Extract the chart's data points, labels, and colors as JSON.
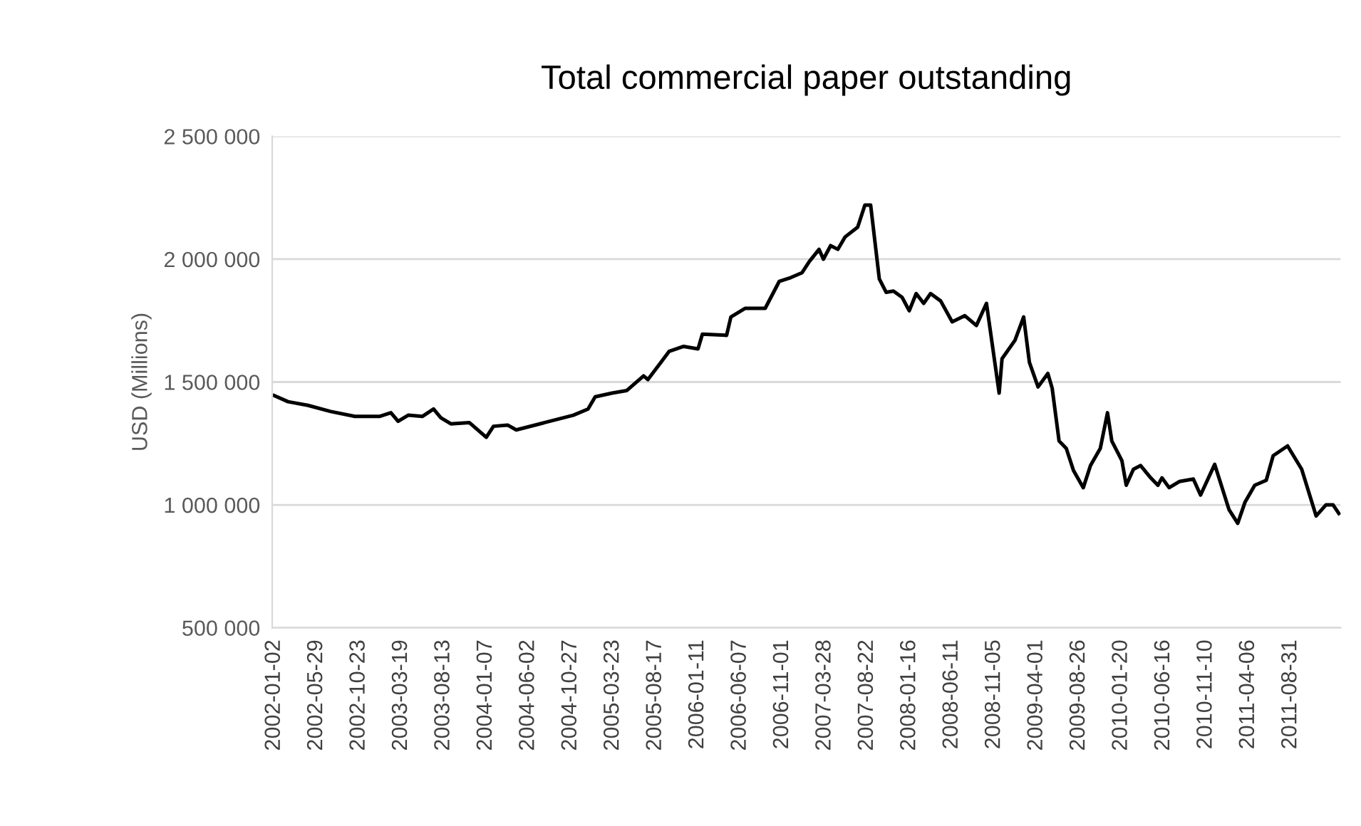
{
  "chart_data": {
    "type": "line",
    "title": "Total commercial paper outstanding",
    "ylabel": "USD (Millions)",
    "x": [
      "2002-01-02",
      "2002-02-19",
      "2002-04-29",
      "2002-07-17",
      "2002-10-09",
      "2003-01-02",
      "2003-02-11",
      "2003-03-08",
      "2003-04-12",
      "2003-05-31",
      "2003-07-09",
      "2003-08-03",
      "2003-09-07",
      "2003-11-10",
      "2004-01-08",
      "2004-02-02",
      "2004-03-22",
      "2004-04-21",
      "2004-07-29",
      "2004-11-05",
      "2004-12-26",
      "2005-01-20",
      "2005-03-20",
      "2005-05-09",
      "2005-07-07",
      "2005-07-22",
      "2005-10-04",
      "2005-11-23",
      "2006-01-12",
      "2006-01-27",
      "2006-04-21",
      "2006-05-06",
      "2006-06-25",
      "2006-09-02",
      "2006-10-21",
      "2006-11-30",
      "2007-01-08",
      "2007-02-02",
      "2007-03-08",
      "2007-03-23",
      "2007-04-17",
      "2007-05-12",
      "2007-06-06",
      "2007-07-20",
      "2007-08-14",
      "2007-09-03",
      "2007-10-03",
      "2007-10-27",
      "2007-11-21",
      "2007-12-21",
      "2008-01-15",
      "2008-02-08",
      "2008-03-05",
      "2008-03-29",
      "2008-05-03",
      "2008-06-12",
      "2008-07-26",
      "2008-09-04",
      "2008-10-09",
      "2008-11-22",
      "2008-12-02",
      "2009-01-16",
      "2009-02-15",
      "2009-03-07",
      "2009-04-06",
      "2009-05-10",
      "2009-05-25",
      "2009-06-18",
      "2009-07-13",
      "2009-08-07",
      "2009-09-10",
      "2009-10-05",
      "2009-11-08",
      "2009-12-03",
      "2009-12-18",
      "2010-01-22",
      "2010-02-06",
      "2010-03-03",
      "2010-03-28",
      "2010-05-02",
      "2010-05-27",
      "2010-06-10",
      "2010-07-05",
      "2010-08-09",
      "2010-09-27",
      "2010-10-22",
      "2010-12-10",
      "2011-01-29",
      "2011-02-28",
      "2011-03-25",
      "2011-04-28",
      "2011-06-07",
      "2011-07-01",
      "2011-08-20",
      "2011-10-08",
      "2011-11-27",
      "2011-12-31",
      "2012-01-25",
      "2012-02-14"
    ],
    "series": [
      {
        "color": "#000000",
        "values": [
          1445000,
          1420000,
          1405000,
          1380000,
          1360000,
          1360000,
          1375000,
          1340000,
          1365000,
          1360000,
          1390000,
          1355000,
          1330000,
          1335000,
          1275000,
          1320000,
          1325000,
          1305000,
          1335000,
          1365000,
          1390000,
          1440000,
          1455000,
          1465000,
          1525000,
          1510000,
          1625000,
          1645000,
          1635000,
          1695000,
          1690000,
          1765000,
          1800000,
          1800000,
          1910000,
          1925000,
          1945000,
          1990000,
          2040000,
          2000000,
          2055000,
          2040000,
          2090000,
          2130000,
          2220000,
          2220000,
          1920000,
          1865000,
          1870000,
          1845000,
          1790000,
          1860000,
          1820000,
          1860000,
          1830000,
          1745000,
          1770000,
          1730000,
          1820000,
          1455000,
          1595000,
          1670000,
          1765000,
          1580000,
          1480000,
          1535000,
          1475000,
          1260000,
          1230000,
          1140000,
          1070000,
          1160000,
          1230000,
          1375000,
          1260000,
          1180000,
          1080000,
          1145000,
          1160000,
          1110000,
          1080000,
          1110000,
          1070000,
          1095000,
          1105000,
          1040000,
          1165000,
          980000,
          925000,
          1010000,
          1080000,
          1100000,
          1200000,
          1240000,
          1145000,
          955000,
          1000000,
          1000000,
          965000
        ]
      }
    ],
    "xlim": [
      "2001-12-26",
      "2012-02-20"
    ],
    "xticks": [
      "2002-01-02",
      "2002-05-29",
      "2002-10-23",
      "2003-03-19",
      "2003-08-13",
      "2004-01-07",
      "2004-06-02",
      "2004-10-27",
      "2005-03-23",
      "2005-08-17",
      "2006-01-11",
      "2006-06-07",
      "2006-11-01",
      "2007-03-28",
      "2007-08-22",
      "2008-01-16",
      "2008-06-11",
      "2008-11-05",
      "2009-04-01",
      "2009-08-26",
      "2010-01-20",
      "2010-06-16",
      "2010-11-10",
      "2011-04-06",
      "2011-08-31"
    ],
    "ylim": [
      500000,
      2500000
    ],
    "yticks": [
      {
        "value": 500000,
        "label": "500 000"
      },
      {
        "value": 1000000,
        "label": "1 000 000"
      },
      {
        "value": 1500000,
        "label": "1 500 000"
      },
      {
        "value": 2000000,
        "label": "2 000 000"
      },
      {
        "value": 2500000,
        "label": "2 500 000"
      }
    ],
    "grid": "y",
    "marker": "none",
    "line_style": "solid"
  }
}
